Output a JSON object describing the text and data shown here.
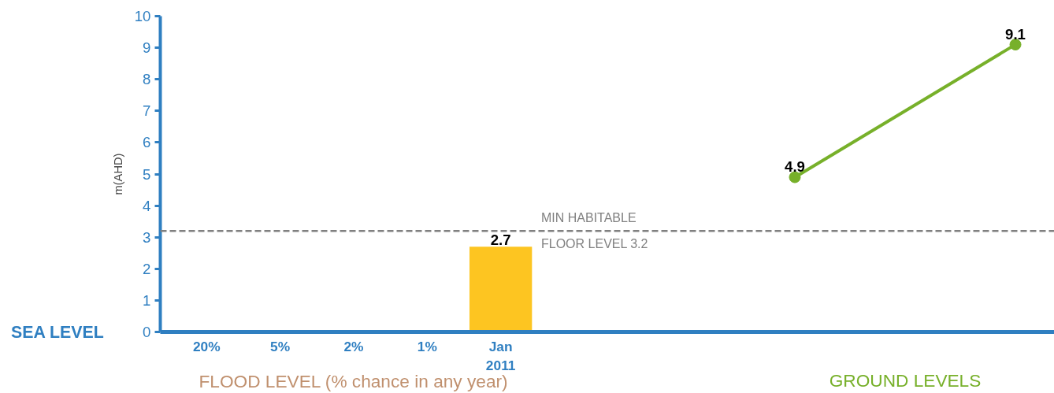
{
  "chart_data": {
    "type": "bar",
    "ylabel": "m(AHD)",
    "xlabel": "FLOOD LEVEL (% chance in any year)",
    "categories": [
      "20%",
      "5%",
      "2%",
      "1%",
      "Jan 2011",
      null,
      null,
      null,
      null,
      null,
      null,
      null
    ],
    "series": [
      {
        "type": "bar",
        "color": "#fdc521",
        "values": [
          null,
          null,
          null,
          null,
          2.7,
          null,
          null,
          null,
          null,
          null,
          null,
          null
        ]
      },
      {
        "type": "line",
        "color": "#77b02a",
        "values": [
          null,
          null,
          null,
          null,
          null,
          null,
          null,
          null,
          4.9,
          null,
          null,
          9.1
        ]
      }
    ],
    "ylim": [
      0,
      10
    ],
    "yticks": [
      0,
      1,
      2,
      3,
      4,
      5,
      6,
      7,
      8,
      9,
      10
    ],
    "ref_lines": [
      {
        "axis": "y",
        "value": 3.2,
        "label": "MIN HABITABLE\nFLOOR LEVEL 3.2",
        "color": "#808080",
        "line_style": "dashed"
      }
    ],
    "annotations": [
      "SEA LEVEL",
      "GROUND LEVELS"
    ],
    "data_labels": true,
    "marker": "circle",
    "grid": false
  }
}
